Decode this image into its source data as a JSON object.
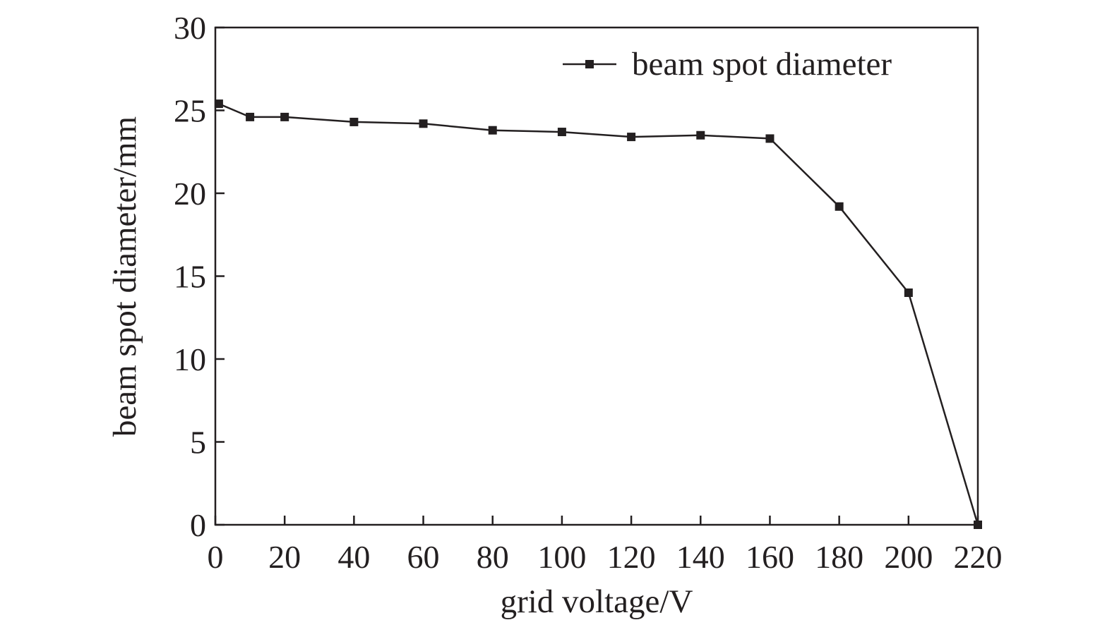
{
  "chart_data": {
    "type": "line",
    "xlabel": "grid voltage/V",
    "ylabel": "beam spot diameter/mm",
    "xlim": [
      0,
      220
    ],
    "ylim": [
      0,
      30
    ],
    "x_ticks": [
      0,
      20,
      40,
      60,
      80,
      100,
      120,
      140,
      160,
      180,
      200,
      220
    ],
    "y_ticks": [
      0,
      5,
      10,
      15,
      20,
      25,
      30
    ],
    "grid": false,
    "legend_position": "top-right",
    "series": [
      {
        "name": "beam spot diameter",
        "marker": "square",
        "color": "#231f20",
        "x": [
          1,
          10,
          20,
          40,
          60,
          80,
          100,
          120,
          140,
          160,
          180,
          200,
          220
        ],
        "y": [
          25.4,
          24.6,
          24.6,
          24.3,
          24.2,
          23.8,
          23.7,
          23.4,
          23.5,
          23.3,
          19.2,
          14.0,
          0.0
        ]
      }
    ]
  }
}
